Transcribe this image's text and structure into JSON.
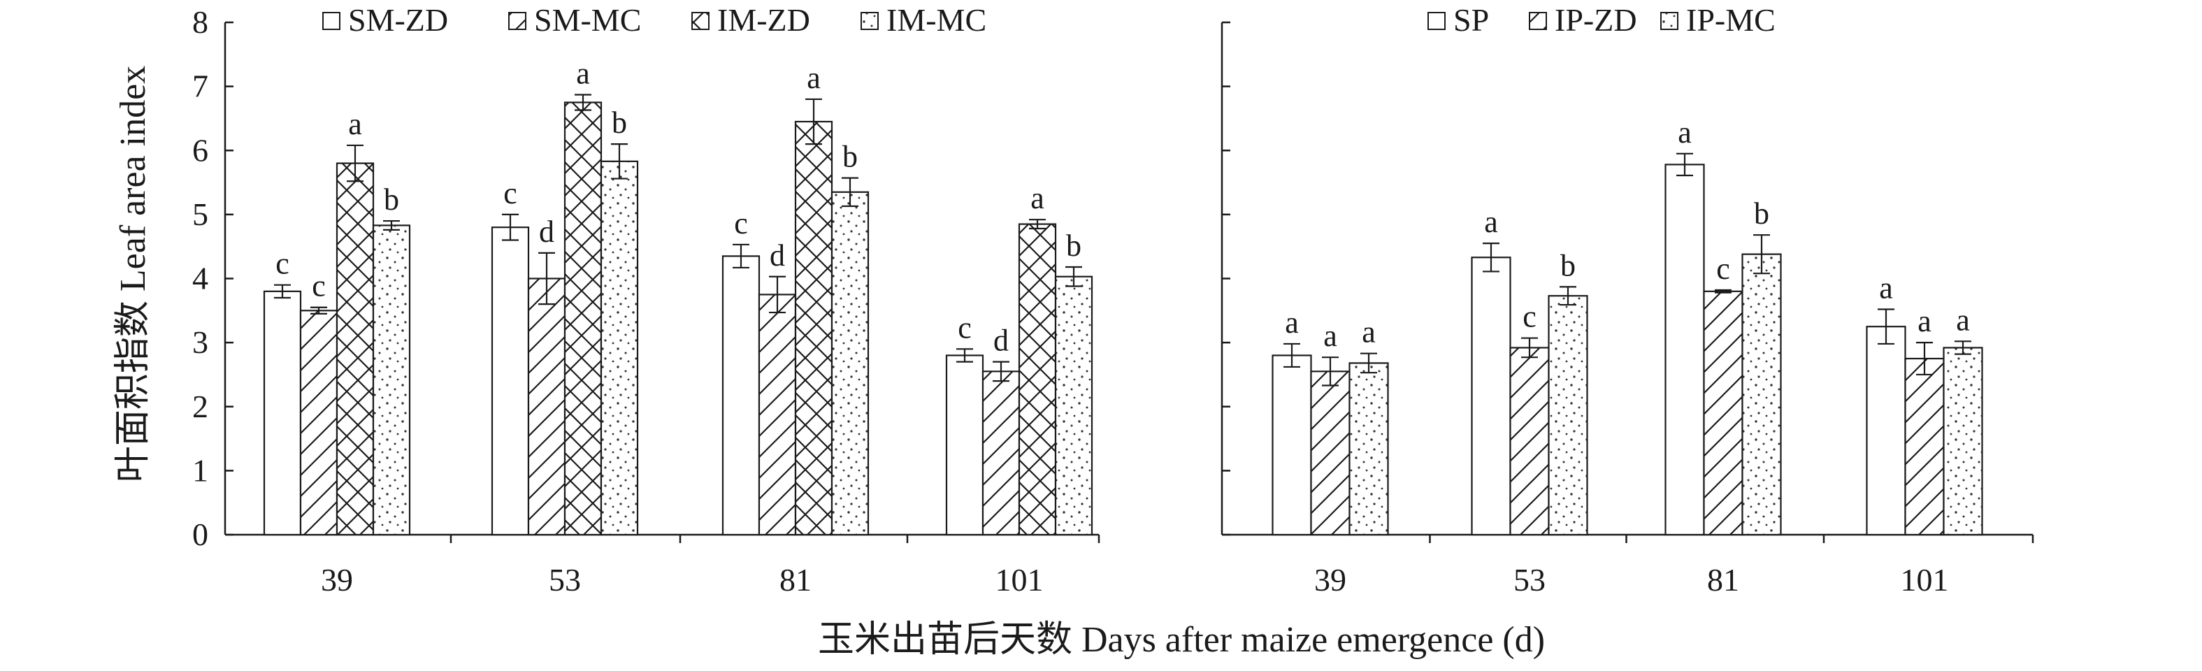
{
  "figure": {
    "ylabel": "叶面积指数 Leaf area index",
    "xlabel": "玉米出苗后天数 Days after maize emergence (d)"
  },
  "chart_data": [
    {
      "type": "bar",
      "panel": "left",
      "categories": [
        "39",
        "53",
        "81",
        "101"
      ],
      "ylim": [
        0,
        8
      ],
      "yticks": [
        "0",
        "1",
        "2",
        "3",
        "4",
        "5",
        "6",
        "7",
        "8"
      ],
      "grid": false,
      "legend": "top",
      "series": [
        {
          "name": "SM-ZD",
          "pattern": "empty",
          "values": [
            3.8,
            4.8,
            4.35,
            2.8
          ],
          "errors": [
            0.1,
            0.2,
            0.18,
            0.1
          ],
          "labels": [
            "c",
            "c",
            "c",
            "c"
          ]
        },
        {
          "name": "SM-MC",
          "pattern": "diagonal",
          "values": [
            3.5,
            4.0,
            3.75,
            2.55
          ],
          "errors": [
            0.05,
            0.4,
            0.28,
            0.15
          ],
          "labels": [
            "c",
            "d",
            "d",
            "d"
          ]
        },
        {
          "name": "IM-ZD",
          "pattern": "crosshatch",
          "values": [
            5.8,
            6.75,
            6.45,
            4.85
          ],
          "errors": [
            0.28,
            0.12,
            0.35,
            0.07
          ],
          "labels": [
            "a",
            "a",
            "a",
            "a"
          ]
        },
        {
          "name": "IM-MC",
          "pattern": "dots",
          "values": [
            4.83,
            5.83,
            5.35,
            4.03
          ],
          "errors": [
            0.07,
            0.27,
            0.22,
            0.15
          ],
          "labels": [
            "b",
            "b",
            "b",
            "b"
          ]
        }
      ]
    },
    {
      "type": "bar",
      "panel": "right",
      "categories": [
        "39",
        "53",
        "81",
        "101"
      ],
      "ylim": [
        0,
        8
      ],
      "grid": false,
      "legend": "top",
      "series": [
        {
          "name": "SP",
          "pattern": "empty",
          "values": [
            2.8,
            4.33,
            5.78,
            3.25
          ],
          "errors": [
            0.18,
            0.22,
            0.17,
            0.27
          ],
          "labels": [
            "a",
            "a",
            "a",
            "a"
          ]
        },
        {
          "name": "IP-ZD",
          "pattern": "diagonal",
          "values": [
            2.55,
            2.92,
            3.8,
            2.75
          ],
          "errors": [
            0.22,
            0.15,
            0.02,
            0.25
          ],
          "labels": [
            "a",
            "c",
            "c",
            "a"
          ]
        },
        {
          "name": "IP-MC",
          "pattern": "dots",
          "values": [
            2.68,
            3.73,
            4.38,
            2.92
          ],
          "errors": [
            0.15,
            0.14,
            0.3,
            0.1
          ],
          "labels": [
            "a",
            "b",
            "b",
            "a"
          ]
        }
      ]
    }
  ]
}
